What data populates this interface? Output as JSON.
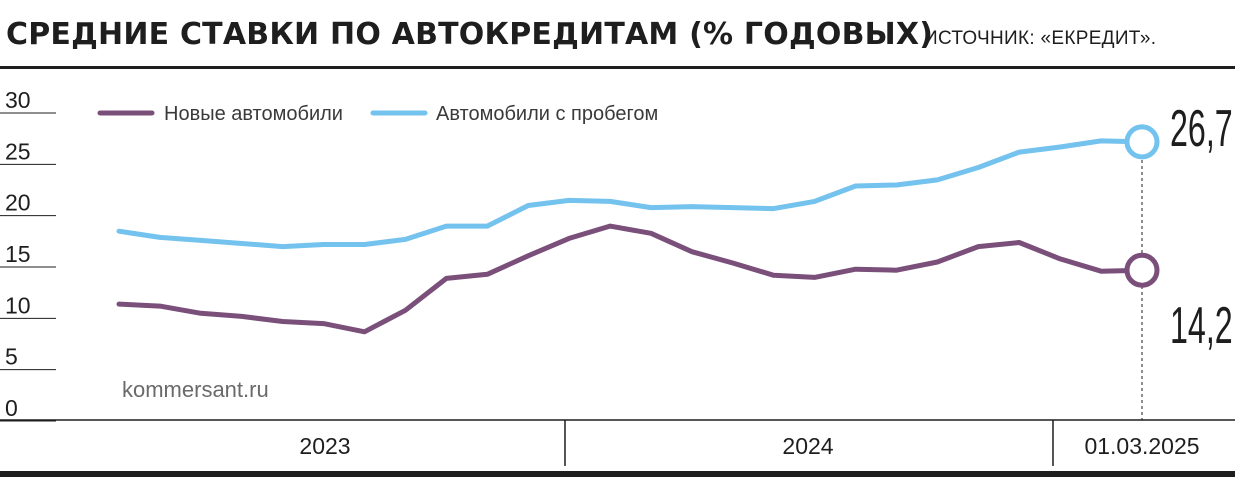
{
  "header": {
    "title": "СРЕДНИЕ СТАВКИ ПО АВТОКРЕДИТАМ (% ГОДОВЫХ)",
    "source": "ИСТОЧНИК: «ЕКРЕДИТ»."
  },
  "watermark": "kommersant.ru",
  "colors": {
    "new_cars": "#7a4f7a",
    "used_cars": "#74c2ee",
    "text": "#1e1e1e"
  },
  "chart_data": {
    "type": "line",
    "title": "СРЕДНИЕ СТАВКИ ПО АВТОКРЕДИТАМ (% ГОДОВЫХ)",
    "ylim": [
      0,
      30
    ],
    "yticks": [
      "0",
      "5",
      "10",
      "15",
      "20",
      "25",
      "30"
    ],
    "x_period_labels": [
      "2023",
      "2024",
      "01.03.2025"
    ],
    "legend_position": "top-left",
    "grid": false,
    "series": [
      {
        "name": "Новые автомобили",
        "values": [
          10.9,
          10.7,
          10.0,
          9.7,
          9.2,
          9.0,
          8.2,
          10.3,
          13.4,
          13.8,
          15.6,
          17.3,
          18.5,
          17.8,
          16.0,
          14.9,
          13.7,
          13.5,
          14.3,
          14.2,
          15.0,
          16.5,
          16.9,
          15.3,
          14.1,
          14.2
        ],
        "end_label": "14,2"
      },
      {
        "name": "Автомобили с пробегом",
        "values": [
          18.0,
          17.4,
          17.1,
          16.8,
          16.5,
          16.7,
          16.7,
          17.2,
          18.5,
          18.5,
          20.5,
          21.0,
          20.9,
          20.3,
          20.4,
          20.3,
          20.2,
          20.9,
          22.4,
          22.5,
          23.0,
          24.2,
          25.7,
          26.2,
          26.8,
          26.7
        ],
        "end_label": "26,7"
      }
    ]
  }
}
